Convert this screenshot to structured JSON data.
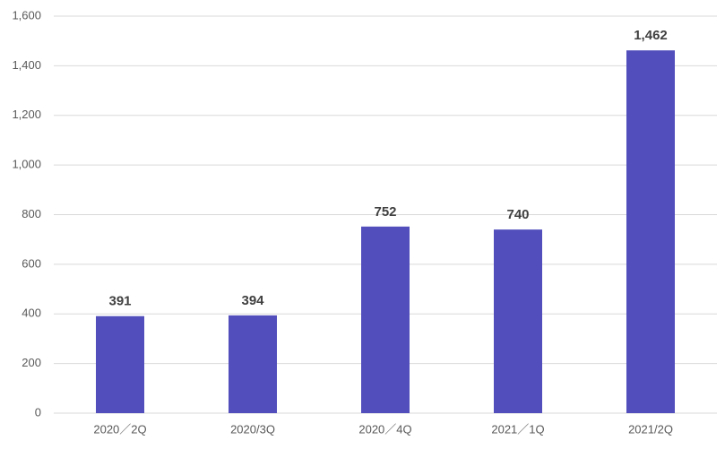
{
  "chart_data": {
    "type": "bar",
    "categories": [
      "2020／2Q",
      "2020/3Q",
      "2020／4Q",
      "2021／1Q",
      "2021/2Q"
    ],
    "values": [
      391,
      394,
      752,
      740,
      1462
    ],
    "value_labels": [
      "391",
      "394",
      "752",
      "740",
      "1,462"
    ],
    "color": "#524fbc",
    "ylim": [
      0,
      1600
    ],
    "yticks": [
      0,
      200,
      400,
      600,
      800,
      {
        "value": 1000,
        "label": "1,000"
      },
      {
        "value": 1200,
        "label": "1,200"
      },
      {
        "value": 1400,
        "label": "1,400"
      },
      {
        "value": 1600,
        "label": "1,600"
      }
    ],
    "grid": true
  }
}
